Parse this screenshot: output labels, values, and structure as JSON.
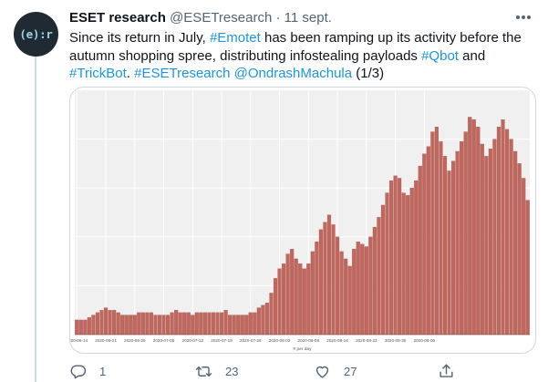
{
  "tweet": {
    "author_name": "ESET research",
    "handle": "@ESETresearch",
    "separator": "·",
    "date": "11 sept.",
    "avatar_text": "(e):r",
    "text_lines": [
      [
        {
          "t": "Since its return in July, "
        },
        {
          "t": "#Emotet",
          "link": true
        },
        {
          "t": " has been ramping up its activity before the"
        }
      ],
      [
        {
          "t": "autumn shopping spree, distributing infostealing payloads "
        },
        {
          "t": "#Qbot",
          "link": true
        },
        {
          "t": " and"
        }
      ],
      [
        {
          "t": "#TrickBot",
          "link": true
        },
        {
          "t": ". "
        },
        {
          "t": "#ESETresearch",
          "link": true
        },
        {
          "t": " "
        },
        {
          "t": "@OndrashMachula",
          "link": true
        },
        {
          "t": " (1/3)"
        }
      ]
    ],
    "reply_count": "1",
    "retweet_count": "23",
    "like_count": "27"
  },
  "icons": {
    "avatar": "eset-logo",
    "more": "more-dots-icon",
    "reply": "reply-icon",
    "retweet": "retweet-icon",
    "like": "heart-icon",
    "share": "share-icon"
  },
  "colors": {
    "link": "#1b95e0",
    "bar": "#c0675e",
    "bar_stroke": "#a44f47",
    "plot_bg": "#f0f0f0",
    "secondary_text": "#536471"
  },
  "chart_data": {
    "type": "bar",
    "xlabel": "# per day",
    "ylabel": "",
    "grid": true,
    "legend": "none",
    "ylim": [
      0,
      100
    ],
    "tick_labels": [
      "2020-06-14",
      "2020-06-21",
      "2020-06-28",
      "2020-07-05",
      "2020-07-12",
      "2020-07-19",
      "2020-07-26",
      "2020-08-02",
      "2020-08-09",
      "2020-08-16",
      "2020-08-23",
      "2020-08-30",
      "2020-09-06"
    ],
    "x_start": "2020-06-14",
    "x_end": "2020-09-13",
    "values": [
      6,
      6,
      6,
      7,
      8,
      9,
      10,
      11,
      10,
      10,
      9,
      8,
      8,
      8,
      8,
      9,
      9,
      9,
      9,
      8,
      8,
      8,
      8,
      9,
      10,
      9,
      9,
      9,
      8,
      9,
      9,
      9,
      9,
      9,
      9,
      9,
      10,
      8,
      8,
      8,
      8,
      8,
      9,
      9,
      11,
      12,
      13,
      17,
      23,
      27,
      29,
      33,
      35,
      31,
      29,
      27,
      29,
      34,
      38,
      43,
      46,
      49,
      45,
      40,
      34,
      31,
      28,
      35,
      38,
      37,
      36,
      40,
      44,
      48,
      53,
      58,
      63,
      65,
      64,
      58,
      57,
      60,
      63,
      69,
      74,
      77,
      83,
      85,
      79,
      73,
      67,
      71,
      75,
      79,
      83,
      89,
      88,
      85,
      78,
      73,
      76,
      80,
      85,
      88,
      84,
      80,
      75,
      70,
      64,
      55
    ]
  }
}
